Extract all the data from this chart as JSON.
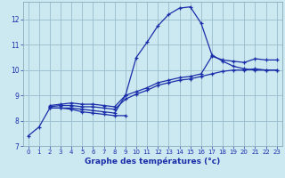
{
  "xlabel": "Graphe des températures (°c)",
  "bg_color": "#cce8f0",
  "line_color": "#1a2eaa",
  "grid_color": "#99bbcc",
  "xlim": [
    -0.5,
    23.5
  ],
  "ylim": [
    7.0,
    12.7
  ],
  "yticks": [
    7,
    8,
    9,
    10,
    11,
    12
  ],
  "xticks": [
    0,
    1,
    2,
    3,
    4,
    5,
    6,
    7,
    8,
    9,
    10,
    11,
    12,
    13,
    14,
    15,
    16,
    17,
    18,
    19,
    20,
    21,
    22,
    23
  ],
  "series": [
    {
      "x": [
        0,
        1,
        2,
        3,
        4,
        5,
        6,
        7,
        8,
        9,
        10,
        11,
        12,
        13,
        14,
        15,
        16,
        17,
        18,
        19,
        20,
        21,
        22,
        23
      ],
      "y": [
        7.4,
        7.75,
        8.5,
        8.5,
        8.5,
        8.45,
        8.4,
        8.35,
        8.3,
        9.0,
        10.5,
        11.1,
        11.75,
        12.2,
        12.45,
        12.5,
        11.85,
        10.6,
        10.35,
        10.15,
        10.05,
        10.0,
        10.0,
        10.0
      ]
    },
    {
      "x": [
        2,
        3,
        4,
        5,
        6,
        7,
        8,
        9,
        10,
        11,
        12,
        13,
        14,
        15,
        16,
        17,
        18,
        19,
        20,
        21,
        22,
        23
      ],
      "y": [
        8.6,
        8.65,
        8.7,
        8.65,
        8.65,
        8.6,
        8.55,
        9.0,
        9.15,
        9.3,
        9.5,
        9.6,
        9.7,
        9.75,
        9.85,
        10.55,
        10.4,
        10.35,
        10.3,
        10.45,
        10.4,
        10.4
      ]
    },
    {
      "x": [
        2,
        3,
        4,
        5,
        6,
        7,
        8,
        9,
        10,
        11,
        12,
        13,
        14,
        15,
        16,
        17,
        18,
        19,
        20,
        21,
        22,
        23
      ],
      "y": [
        8.55,
        8.6,
        8.6,
        8.55,
        8.55,
        8.5,
        8.45,
        8.85,
        9.05,
        9.2,
        9.4,
        9.5,
        9.6,
        9.65,
        9.75,
        9.85,
        9.95,
        10.0,
        10.0,
        10.05,
        10.0,
        10.0
      ]
    },
    {
      "x": [
        2,
        3,
        4,
        5,
        6,
        7,
        8,
        9
      ],
      "y": [
        8.5,
        8.5,
        8.45,
        8.35,
        8.3,
        8.25,
        8.2,
        8.2
      ]
    }
  ]
}
